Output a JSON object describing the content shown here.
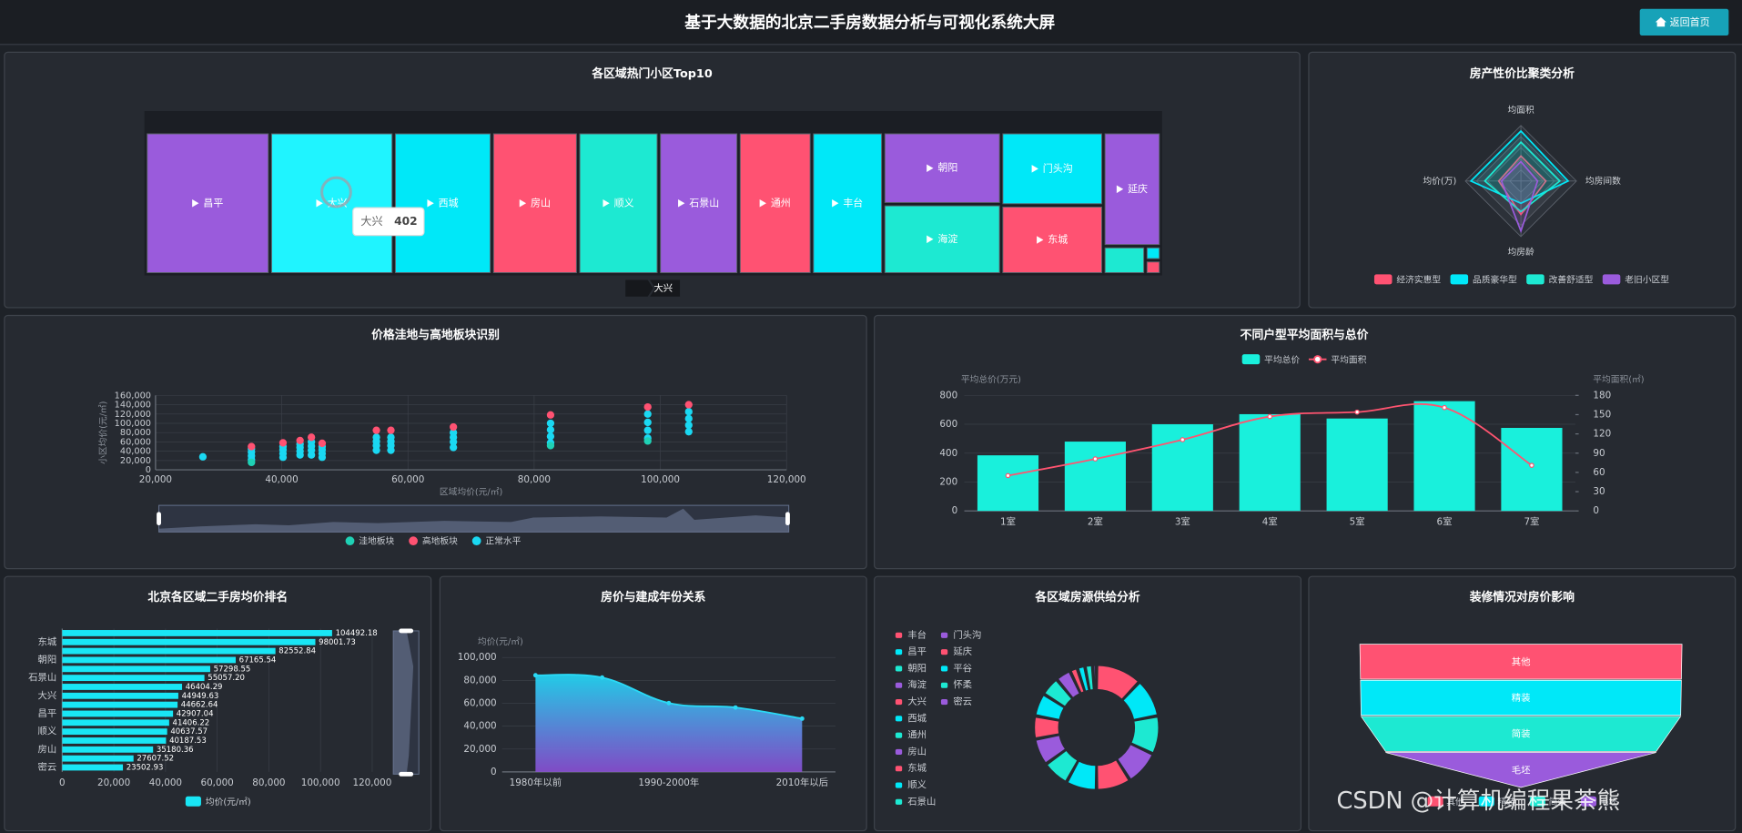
{
  "header": {
    "title": "基于大数据的北京二手房数据分析与可视化系统大屏",
    "button": "返回首页"
  },
  "watermark": "CSDN @计算机编程果茶熊",
  "chart_data": [
    {
      "type": "treemap",
      "title": "各区域热门小区Top10",
      "categories": [
        "昌平",
        "大兴",
        "西城",
        "房山",
        "顺义",
        "石景山",
        "通州",
        "丰台",
        "朝阳",
        "海淀",
        "门头沟",
        "东城",
        "延庆",
        null,
        null,
        null
      ],
      "values": [
        404,
        402,
        319,
        280,
        262,
        259,
        238,
        232,
        194,
        189,
        171,
        161,
        150,
        27,
        5,
        5
      ],
      "colors": [
        "#9a5bdc",
        "#1ff4ff",
        "#00e8f8",
        "#ff5272",
        "#1de9d2",
        "#9a5bdc",
        "#ff5272",
        "#00e8f8",
        "#9a5bdc",
        "#1de9d2",
        "#00e8f8",
        "#ff5272",
        "#9a5bdc",
        "#1de9d2",
        "#00e8f8",
        "#ff5272"
      ]
    },
    {
      "type": "radar",
      "title": "房产性价比聚类分析",
      "indicators": [
        "均面积",
        "均价(万)",
        "均房龄",
        "均房间数"
      ],
      "rlim": [
        0,
        100
      ],
      "series": [
        {
          "name": "经济实惠型",
          "color": "#ff5272",
          "values": [
            45,
            40,
            60,
            45
          ]
        },
        {
          "name": "品质豪华型",
          "color": "#00e8f8",
          "values": [
            90,
            90,
            40,
            85
          ]
        },
        {
          "name": "改善舒适型",
          "color": "#1de9d2",
          "values": [
            70,
            65,
            55,
            70
          ]
        },
        {
          "name": "老旧小区型",
          "color": "#9a5bdc",
          "values": [
            35,
            35,
            90,
            30
          ]
        }
      ]
    },
    {
      "type": "scatter",
      "title": "价格洼地与高地板块识别",
      "xlabel": "区域均价(元/㎡)",
      "ylabel": "小区均价(元/㎡)",
      "xlim": [
        20000,
        120000
      ],
      "xticks": [
        {
          "value": 20000,
          "label": "20,000"
        },
        {
          "value": 40000,
          "label": "40,000"
        },
        {
          "value": 60000,
          "label": "60,000"
        },
        {
          "value": 80000,
          "label": "80,000"
        },
        {
          "value": 100000,
          "label": "100,000"
        },
        {
          "value": 120000,
          "label": "120,000"
        }
      ],
      "ylim": [
        0,
        160000
      ],
      "yticks": [
        0,
        {
          "value": 20000,
          "label": "20,000"
        },
        {
          "value": 40000,
          "label": "40,000"
        },
        {
          "value": 60000,
          "label": "60,000"
        },
        {
          "value": 80000,
          "label": "80,000"
        },
        {
          "value": 100000,
          "label": "100,000"
        },
        {
          "value": 120000,
          "label": "120,000"
        },
        {
          "value": 140000,
          "label": "140,000"
        },
        {
          "value": 160000,
          "label": "160,000"
        }
      ],
      "grid": true,
      "series": [
        {
          "name": "洼地板块",
          "color": "#1fd1b5",
          "x": [
            35200,
            82600,
            98000
          ],
          "values": [
            16000,
            52000,
            62000
          ]
        },
        {
          "name": "高地板块",
          "color": "#ff5272",
          "x": [
            35200,
            40200,
            42900,
            44700,
            46400,
            55000,
            57300,
            67200,
            82600,
            98000,
            104500
          ],
          "values": [
            50000,
            58000,
            63000,
            70000,
            57000,
            85000,
            85000,
            92000,
            118000,
            135000,
            140000
          ]
        },
        {
          "name": "正常水平",
          "color": "#1ad8f2",
          "x": [
            27500,
            35200,
            35200,
            35200,
            35200,
            40200,
            40200,
            40200,
            40200,
            42900,
            42900,
            42900,
            42900,
            44700,
            44700,
            44700,
            44700,
            46400,
            46400,
            46400,
            46400,
            55000,
            55000,
            55000,
            55000,
            57300,
            57300,
            57300,
            57300,
            67200,
            67200,
            67200,
            67200,
            82600,
            82600,
            82600,
            82600,
            98000,
            98000,
            98000,
            98000,
            104500,
            104500,
            104500,
            104500
          ],
          "values": [
            28000,
            22000,
            30000,
            38000,
            45000,
            27000,
            35000,
            43000,
            50000,
            32000,
            40000,
            48000,
            55000,
            32000,
            42000,
            51000,
            60000,
            27000,
            35000,
            43000,
            50000,
            42000,
            52000,
            61000,
            70000,
            42000,
            52000,
            61000,
            70000,
            48000,
            60000,
            70000,
            80000,
            58000,
            72000,
            86000,
            100000,
            68000,
            85000,
            102000,
            120000,
            82000,
            96000,
            110000,
            125000
          ]
        }
      ]
    },
    {
      "type": "bar_line",
      "title": "不同户型平均面积与总价",
      "ylabel": "平均总价(万元)",
      "y2label": "平均面积(㎡)",
      "categories": [
        "1室",
        "2室",
        "3室",
        "4室",
        "5室",
        "6室",
        "7室"
      ],
      "ylim": [
        0,
        800
      ],
      "yticks": [
        0,
        200,
        400,
        600,
        800
      ],
      "y2lim": [
        0,
        180
      ],
      "y2ticks": [
        0,
        30,
        60,
        90,
        120,
        150,
        180
      ],
      "grid": true,
      "series": [
        {
          "name": "平均总价",
          "type": "bar",
          "color": "#19f0dc",
          "values": [
            385,
            480,
            600,
            670,
            640,
            760,
            575
          ]
        },
        {
          "name": "平均面积",
          "type": "line",
          "axis": "y2",
          "color": "#ff5470",
          "values": [
            55,
            81,
            111,
            147,
            154,
            161,
            71
          ]
        }
      ]
    },
    {
      "type": "hbar",
      "title": "北京各区域二手房均价排名",
      "name": "均价(元/㎡)",
      "color": "#19e6f5",
      "categories": [
        null,
        "东城",
        null,
        "朝阳",
        null,
        "石景山",
        null,
        "大兴",
        null,
        "昌平",
        null,
        "顺义",
        null,
        "房山",
        null,
        "密云"
      ],
      "values": [
        104492.18,
        98001.73,
        82552.84,
        67165.54,
        57298.55,
        55057.2,
        46404.29,
        44949.63,
        44662.64,
        42907.04,
        41406.22,
        40637.57,
        40187.53,
        35180.36,
        27607.52,
        23502.93
      ],
      "value_labels": [
        "104492.18",
        "98001.73",
        "82552.84",
        "67165.54",
        "57298.55",
        "55057.20",
        "46404.29",
        "44949.63",
        "44662.64",
        "42907.04",
        "41406.22",
        "40637.57",
        "40187.53",
        "35180.36",
        "27607.52",
        "23502.93"
      ],
      "xlim": [
        0,
        120000
      ],
      "xticks": [
        0,
        {
          "value": 20000,
          "label": "20,000"
        },
        {
          "value": 40000,
          "label": "40,000"
        },
        {
          "value": 60000,
          "label": "60,000"
        },
        {
          "value": 80000,
          "label": "80,000"
        },
        {
          "value": 100000,
          "label": "100,000"
        },
        {
          "value": 120000,
          "label": "120,000"
        }
      ],
      "grid": true
    },
    {
      "type": "area",
      "title": "房价与建成年份关系",
      "ylabel": "均价(元/㎡)",
      "color": "#2ad9f5",
      "categories": [
        "1980年以前",
        null,
        "1990-2000年",
        null,
        "2010年以后"
      ],
      "values": [
        84500,
        82500,
        60200,
        56300,
        46600
      ],
      "ylim": [
        0,
        100000
      ],
      "yticks": [
        0,
        {
          "value": 20000,
          "label": "20,000"
        },
        {
          "value": 40000,
          "label": "40,000"
        },
        {
          "value": 60000,
          "label": "60,000"
        },
        {
          "value": 80000,
          "label": "80,000"
        },
        {
          "value": 100000,
          "label": "100,000"
        }
      ],
      "grid": true
    },
    {
      "type": "donut",
      "title": "各区域房源供给分析",
      "categories": [
        "丰台",
        "昌平",
        "朝阳",
        "海淀",
        "大兴",
        "西城",
        "通州",
        "房山",
        "东城",
        "顺义",
        "石景山",
        "门头沟",
        "延庆",
        "平谷",
        "怀柔",
        "密云"
      ],
      "values": [
        12,
        10,
        10,
        9,
        9,
        8,
        7,
        7,
        6,
        6,
        5,
        4,
        2,
        2,
        2,
        1
      ],
      "colors": [
        "#ff5272",
        "#00e8f8",
        "#1de9d2",
        "#9a5bdc",
        "#ff5272",
        "#00e8f8",
        "#1de9d2",
        "#9a5bdc",
        "#ff5272",
        "#00e8f8",
        "#1de9d2",
        "#9a5bdc",
        "#ff5272",
        "#00e8f8",
        "#1de9d2",
        "#9a5bdc"
      ]
    },
    {
      "type": "funnel",
      "title": "装修情况对房价影响",
      "categories": [
        "其他",
        "精装",
        "简装",
        "毛坯"
      ],
      "values": [
        100,
        99.6,
        99.2,
        84
      ],
      "vlim": [
        0,
        100
      ],
      "colors": [
        "#ff5272",
        "#00e8f8",
        "#1de9d2",
        "#9a5bdc"
      ]
    }
  ]
}
